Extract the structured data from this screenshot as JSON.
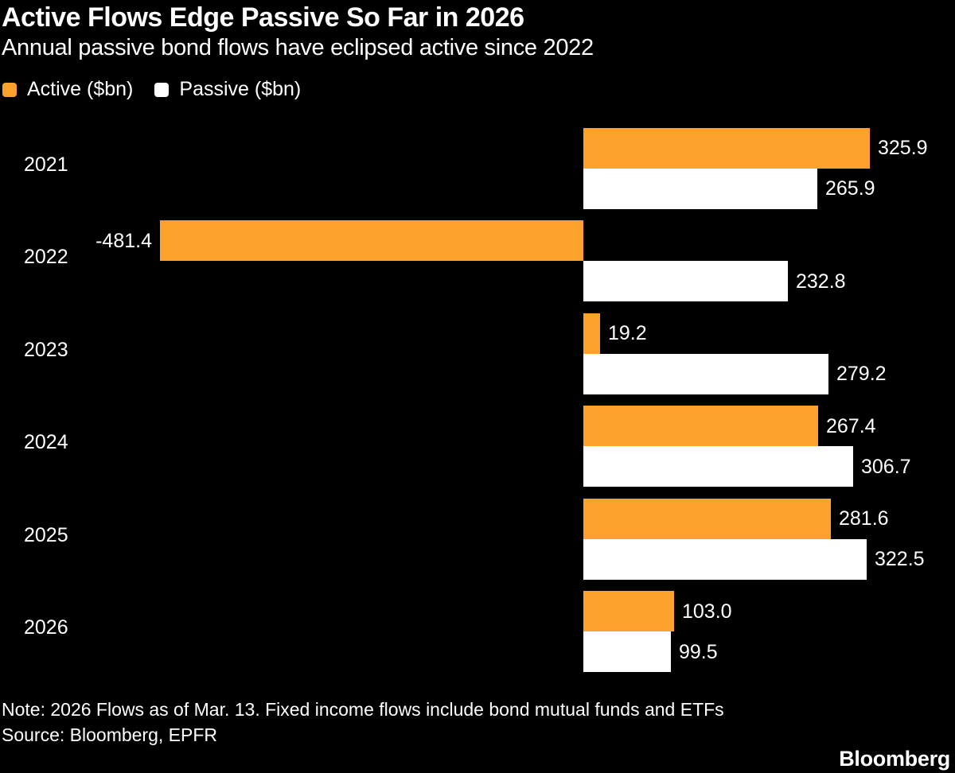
{
  "chart_data": {
    "type": "bar",
    "orientation": "horizontal",
    "title": "Active Flows Edge Passive So Far in 2026",
    "subtitle": "Annual passive bond flows have eclipsed active since 2022",
    "categories": [
      "2021",
      "2022",
      "2023",
      "2024",
      "2025",
      "2026"
    ],
    "series": [
      {
        "id": "active",
        "name": "Active ($bn)",
        "color": "#FBA12C",
        "values": [
          325.9,
          -481.4,
          19.2,
          267.4,
          281.6,
          103.0
        ]
      },
      {
        "id": "passive",
        "name": "Passive ($bn)",
        "color": "#FFFFFF",
        "values": [
          265.9,
          232.8,
          279.2,
          306.7,
          322.5,
          99.5
        ]
      }
    ],
    "value_labels": true,
    "value_label_decimals": 1,
    "xlim": [
      -663,
      423
    ],
    "grid": false,
    "axis_lines": false,
    "legend_position": "top-left",
    "background_color": "#000000",
    "text_color": "#FFFFFF",
    "note": "Note: 2026 Flows as of Mar. 13. Fixed income flows include bond mutual funds and ETFs",
    "source": "Source: Bloomberg, EPFR",
    "brand": "Bloomberg"
  }
}
